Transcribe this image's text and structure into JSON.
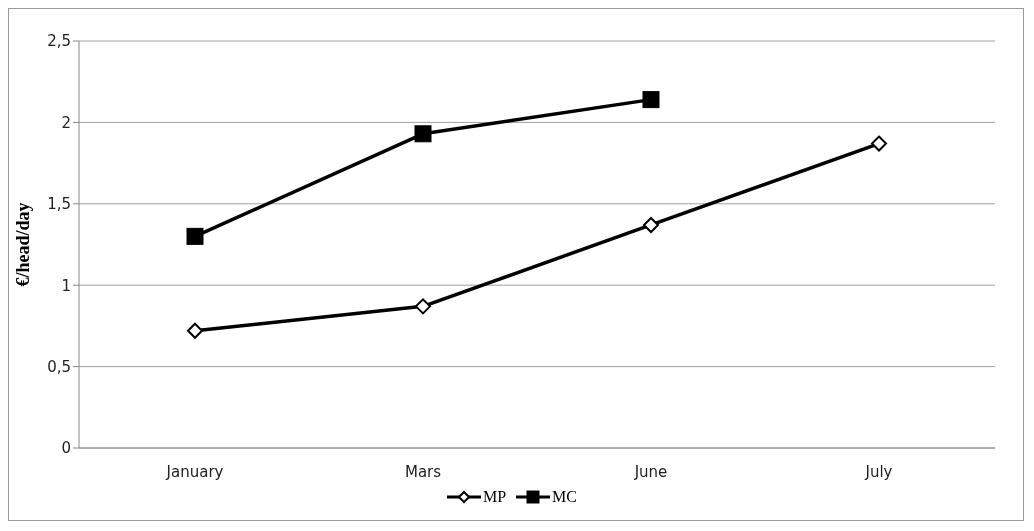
{
  "chart_data": {
    "type": "line",
    "ylabel": "€/head/day",
    "categories": [
      "January",
      "Mars",
      "June",
      "July"
    ],
    "series": [
      {
        "name": "MP",
        "color": "#000000",
        "marker": "diamond",
        "values": [
          0.72,
          0.87,
          1.37,
          1.87
        ]
      },
      {
        "name": "MC",
        "color": "#000000",
        "marker": "square",
        "values": [
          1.3,
          1.93,
          2.14,
          null
        ]
      }
    ],
    "ylim": [
      0,
      2.5
    ],
    "yticks": [
      0,
      {
        "value": 0.5,
        "label": "0,5"
      },
      1,
      {
        "value": 1.5,
        "label": "1,5"
      },
      2,
      {
        "value": 2.5,
        "label": "2,5"
      }
    ],
    "grid": "y",
    "legend": "bottom",
    "line_style": "solid"
  }
}
